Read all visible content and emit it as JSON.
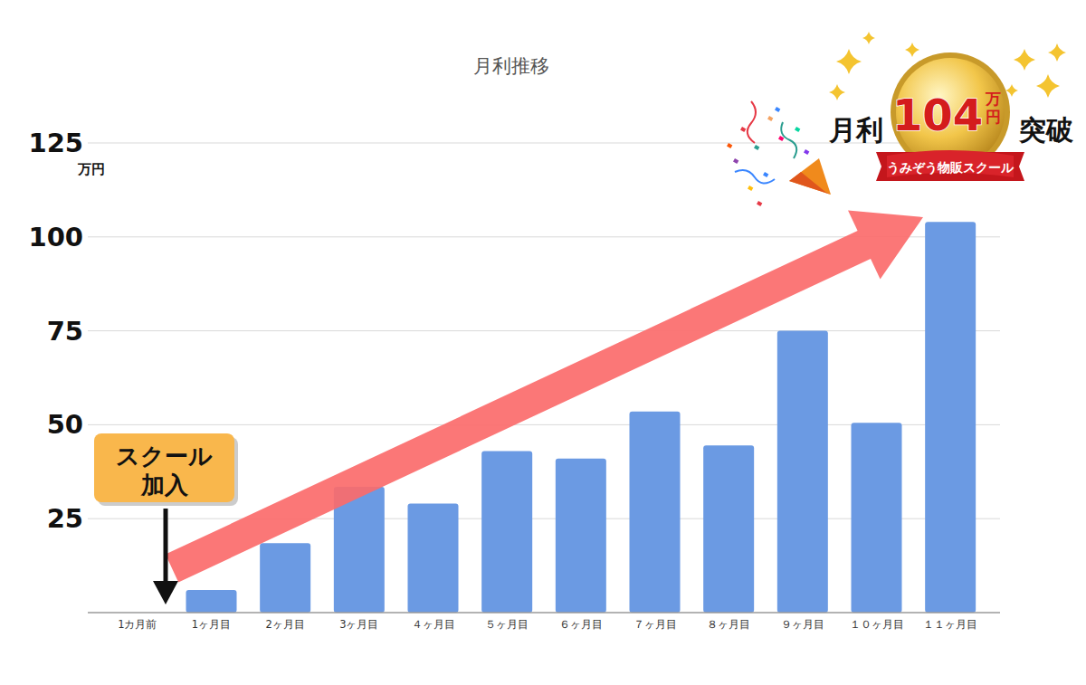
{
  "chart_data": {
    "type": "bar",
    "title": "月利推移",
    "categories": [
      "1カ月前",
      "1ヶ月目",
      "2ヶ月目",
      "3ヶ月目",
      "４ヶ月目",
      "５ヶ月目",
      "６ヶ月目",
      "７ヶ月目",
      "８ヶ月目",
      "９ヶ月目",
      "１０ヶ月目",
      "１１ヶ月目"
    ],
    "values": [
      0,
      6,
      18.5,
      33.5,
      29,
      43,
      41,
      53.5,
      44.5,
      75,
      50.5,
      104
    ],
    "color": "#6b9ae3",
    "ylim": [
      0,
      125
    ],
    "yticks": [
      25,
      50,
      75,
      100,
      125
    ],
    "grid": true,
    "y_label": "万円",
    "join_note": [
      "スクール",
      "加入"
    ],
    "badge": {
      "prefix": "月利",
      "number": "104",
      "unit_top": "万",
      "unit_bottom": "円",
      "suffix": "突破",
      "ribbon": "うみぞう物販スクール"
    }
  }
}
